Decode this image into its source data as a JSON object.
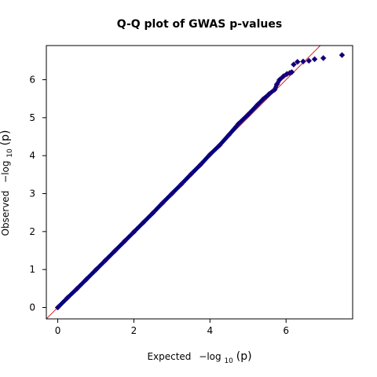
{
  "chart_data": {
    "type": "scatter",
    "title": "Q-Q plot of GWAS p-values",
    "xlabel": {
      "prefix": "Expected",
      "log": "−log",
      "base": "10",
      "arg": "(p)"
    },
    "ylabel": {
      "prefix": "Observed",
      "log": "−log",
      "base": "10",
      "arg": "(p)"
    },
    "xlim": [
      -0.3,
      7.75
    ],
    "ylim": [
      -0.3,
      6.9
    ],
    "x_ticks": [
      0,
      2,
      4,
      6
    ],
    "y_ticks": [
      0,
      1,
      2,
      3,
      4,
      5,
      6
    ],
    "grid": false,
    "reference_line": {
      "slope": 1,
      "intercept": 0,
      "color": "#d62728"
    },
    "point_color": "#000080",
    "point_edge": "#3a006f",
    "series": [
      {
        "points": [
          [
            0.0,
            0.0
          ],
          [
            0.25,
            0.25
          ],
          [
            0.5,
            0.49
          ],
          [
            0.75,
            0.74
          ],
          [
            1.0,
            0.99
          ],
          [
            1.25,
            1.24
          ],
          [
            1.5,
            1.49
          ],
          [
            1.75,
            1.74
          ],
          [
            2.0,
            1.99
          ],
          [
            2.25,
            2.24
          ],
          [
            2.5,
            2.49
          ],
          [
            2.75,
            2.75
          ],
          [
            3.0,
            3.0
          ],
          [
            3.25,
            3.25
          ],
          [
            3.5,
            3.51
          ],
          [
            3.75,
            3.76
          ],
          [
            4.0,
            4.03
          ],
          [
            4.25,
            4.27
          ],
          [
            4.5,
            4.55
          ],
          [
            4.75,
            4.84
          ],
          [
            5.0,
            5.08
          ],
          [
            5.25,
            5.34
          ],
          [
            5.4,
            5.49
          ],
          [
            5.55,
            5.62
          ],
          [
            5.7,
            5.74
          ],
          [
            5.76,
            5.88
          ],
          [
            5.83,
            6.0
          ],
          [
            5.93,
            6.09
          ],
          [
            6.02,
            6.15
          ],
          [
            6.1,
            6.18
          ],
          [
            6.15,
            6.2
          ],
          [
            6.2,
            6.4
          ],
          [
            6.3,
            6.47
          ],
          [
            6.45,
            6.48
          ],
          [
            6.6,
            6.5
          ],
          [
            6.75,
            6.54
          ],
          [
            6.98,
            6.57
          ],
          [
            7.47,
            6.65
          ]
        ]
      }
    ]
  }
}
